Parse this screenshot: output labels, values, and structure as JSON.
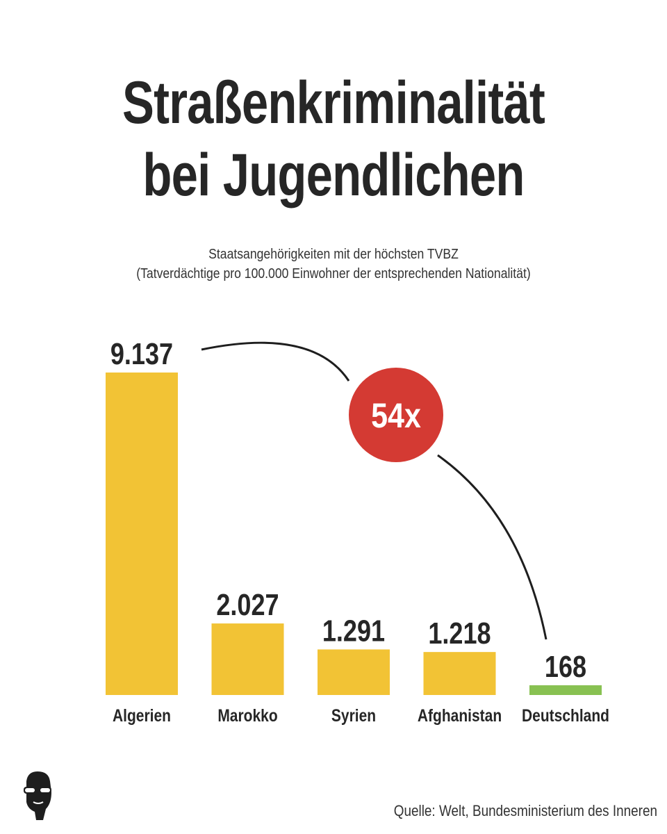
{
  "title": {
    "line1": "Straßenkriminalität",
    "line2": "bei Jugendlichen"
  },
  "subtitle": {
    "line1": "Staatsangehörigkeiten mit der höchsten TVBZ",
    "line2": "(Tatverdächtige pro 100.000 Einwohner der entsprechenden Nationalität)"
  },
  "chart_data": {
    "type": "bar",
    "categories": [
      "Algerien",
      "Marokko",
      "Syrien",
      "Afghanistan",
      "Deutschland"
    ],
    "values": [
      9137,
      2027,
      1291,
      1218,
      168
    ],
    "value_labels": [
      "9.137",
      "2.027",
      "1.291",
      "1.218",
      "168"
    ],
    "ylim": [
      0,
      9137
    ],
    "grid": false,
    "colors": {
      "default": "#f2c335",
      "highlight": "#88c152"
    },
    "annotation": {
      "text": "54x",
      "from": "Algerien",
      "to": "Deutschland",
      "color": "#d43a33"
    }
  },
  "source": "Quelle: Welt, Bundesministerium des Inneren",
  "logo_icon": "face-with-sunglasses-icon"
}
